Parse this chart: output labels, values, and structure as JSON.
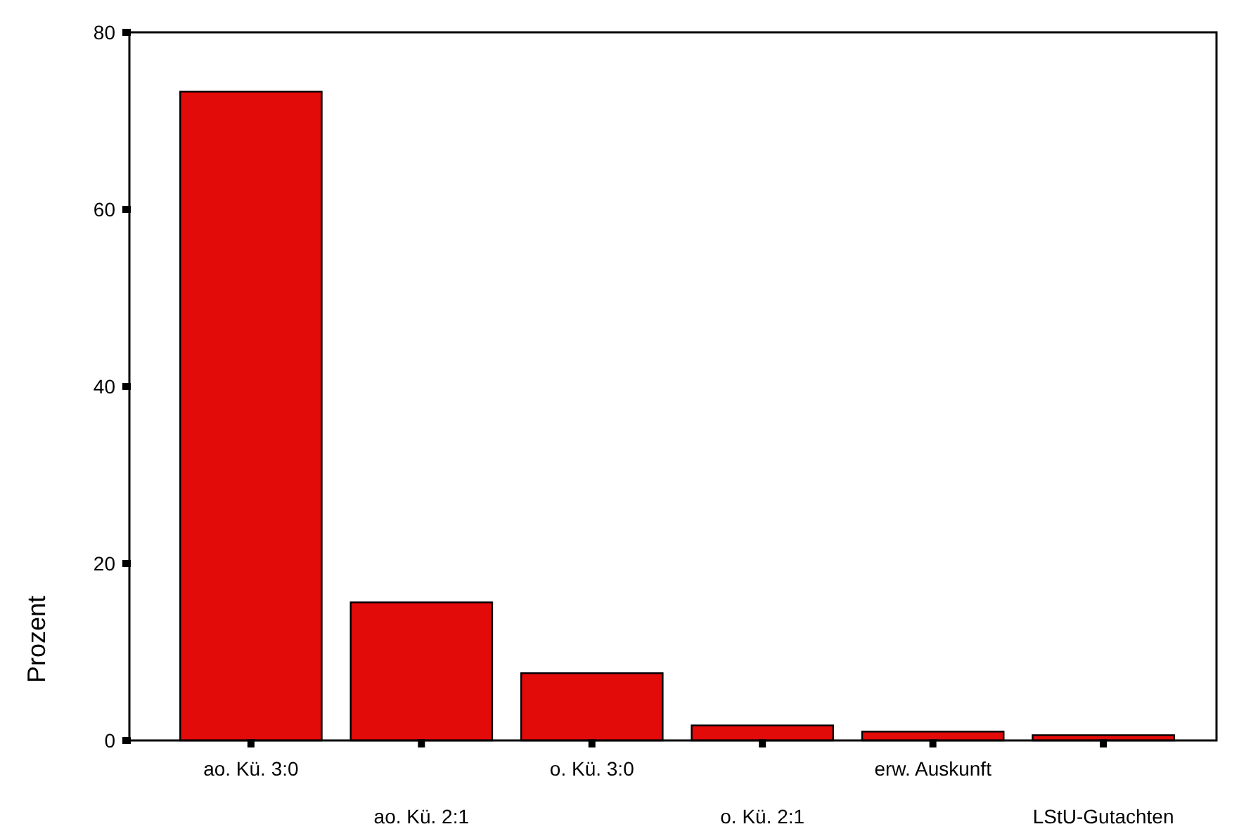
{
  "chart_data": {
    "type": "bar",
    "ylabel": "Prozent",
    "categories": [
      "ao. Kü. 3:0",
      "ao. Kü. 2:1",
      "o. Kü. 3:0",
      "o. Kü. 2:1",
      "erw. Auskunft",
      "LStU-Gutachten"
    ],
    "values": [
      73.3,
      15.6,
      7.6,
      1.7,
      1.0,
      0.6
    ],
    "color": "#e30a0a",
    "ylim": [
      0,
      80
    ],
    "yticks": [
      0,
      20,
      40,
      60,
      80
    ],
    "grid": false
  }
}
